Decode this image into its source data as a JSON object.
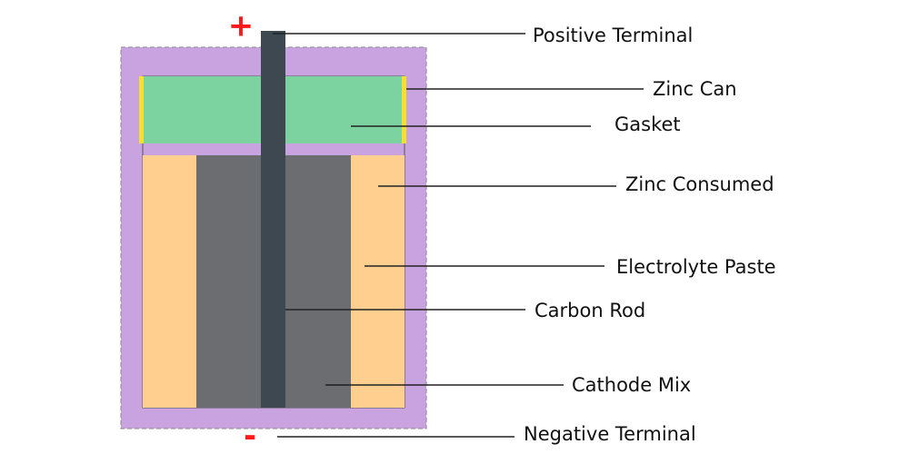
{
  "title_signs": {
    "positive": "+",
    "negative": "-"
  },
  "labels": [
    "Positive Terminal",
    "Zinc Can",
    "Gasket",
    "Zinc Consumed",
    "Electrolyte Paste",
    "Carbon Rod",
    "Cathode Mix",
    "Negative Terminal"
  ]
}
